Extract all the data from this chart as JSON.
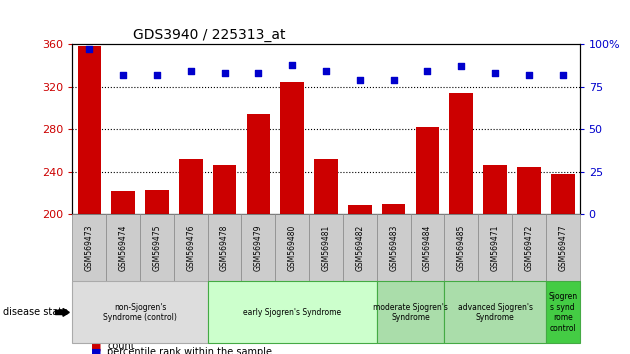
{
  "title": "GDS3940 / 225313_at",
  "samples": [
    "GSM569473",
    "GSM569474",
    "GSM569475",
    "GSM569476",
    "GSM569478",
    "GSM569479",
    "GSM569480",
    "GSM569481",
    "GSM569482",
    "GSM569483",
    "GSM569484",
    "GSM569485",
    "GSM569471",
    "GSM569472",
    "GSM569477"
  ],
  "counts": [
    358,
    222,
    223,
    252,
    246,
    294,
    324,
    252,
    209,
    210,
    282,
    314,
    246,
    244,
    238
  ],
  "percentiles": [
    97,
    82,
    82,
    84,
    83,
    83,
    88,
    84,
    79,
    79,
    84,
    87,
    83,
    82,
    82
  ],
  "ylim_left": [
    200,
    360
  ],
  "ylim_right": [
    0,
    100
  ],
  "yticks_left": [
    200,
    240,
    280,
    320,
    360
  ],
  "yticks_right": [
    0,
    25,
    50,
    75,
    100
  ],
  "bar_color": "#cc0000",
  "dot_color": "#0000cc",
  "group_defs": [
    {
      "label": "non-Sjogren's\nSyndrome (control)",
      "start": 0,
      "end": 4,
      "color": "#dddddd",
      "border": "#aaaaaa"
    },
    {
      "label": "early Sjogren's Syndrome",
      "start": 4,
      "end": 9,
      "color": "#ccffcc",
      "border": "#44aa44"
    },
    {
      "label": "moderate Sjogren's\nSyndrome",
      "start": 9,
      "end": 11,
      "color": "#aaddaa",
      "border": "#44aa44"
    },
    {
      "label": "advanced Sjogren's\nSyndrome",
      "start": 11,
      "end": 14,
      "color": "#aaddaa",
      "border": "#44aa44"
    },
    {
      "label": "Sjogren\ns synd\nrome\ncontrol",
      "start": 14,
      "end": 15,
      "color": "#44cc44",
      "border": "#44aa44"
    }
  ],
  "tick_label_color_left": "#cc0000",
  "tick_label_color_right": "#0000cc",
  "plot_bg": "#ffffff",
  "xtick_bg": "#cccccc"
}
